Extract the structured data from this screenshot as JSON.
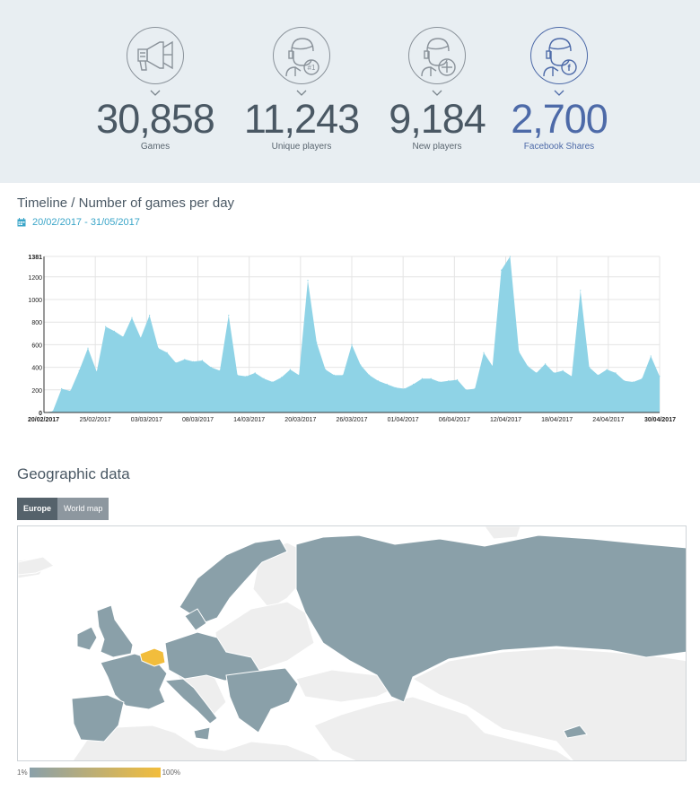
{
  "stats": [
    {
      "value": "30,858",
      "label": "Games",
      "icon": "megaphone-icon"
    },
    {
      "value": "11,243",
      "label": "Unique players",
      "icon": "player-rank-icon",
      "badge": "#1"
    },
    {
      "value": "9,184",
      "label": "New players",
      "icon": "player-add-icon"
    },
    {
      "value": "2,700",
      "label": "Facebook Shares",
      "icon": "player-facebook-icon",
      "badge": "f"
    }
  ],
  "colors": {
    "stats_bg": "#e8eef2",
    "text": "#4a5864",
    "accent_blue": "#4d6aa8",
    "date_blue": "#3aa5c8",
    "area_fill": "#8fd3e6",
    "map_country": "#8aa0a9",
    "map_other": "#eeeeee",
    "map_highlight": "#f2bd3c"
  },
  "timeline": {
    "title": "Timeline / Number of games per day",
    "date_range": "20/02/2017 - 31/05/2017",
    "date_icon": "calendar-icon"
  },
  "chart_data": {
    "type": "area",
    "ylim": [
      0,
      1381
    ],
    "yticks": [
      0,
      200,
      400,
      600,
      800,
      1000,
      1200,
      1381
    ],
    "x_labels": [
      "20/02/2017",
      "25/02/2017",
      "03/03/2017",
      "08/03/2017",
      "14/03/2017",
      "20/03/2017",
      "26/03/2017",
      "01/04/2017",
      "06/04/2017",
      "12/04/2017",
      "18/04/2017",
      "24/04/2017",
      "30/04/2017"
    ],
    "grid": true,
    "values": [
      0,
      10,
      210,
      190,
      370,
      570,
      360,
      760,
      720,
      670,
      840,
      660,
      860,
      570,
      530,
      440,
      470,
      450,
      460,
      400,
      370,
      860,
      330,
      320,
      350,
      300,
      270,
      310,
      380,
      330,
      1170,
      620,
      380,
      330,
      330,
      600,
      420,
      330,
      280,
      250,
      220,
      210,
      250,
      300,
      300,
      270,
      280,
      290,
      200,
      210,
      530,
      410,
      1260,
      1381,
      540,
      410,
      350,
      430,
      350,
      370,
      320,
      1080,
      400,
      330,
      380,
      350,
      280,
      270,
      300,
      500,
      320
    ]
  },
  "geo": {
    "title": "Geographic data",
    "tabs": [
      "Europe",
      "World map"
    ],
    "legend_min": "1%",
    "legend_max": "100%"
  }
}
